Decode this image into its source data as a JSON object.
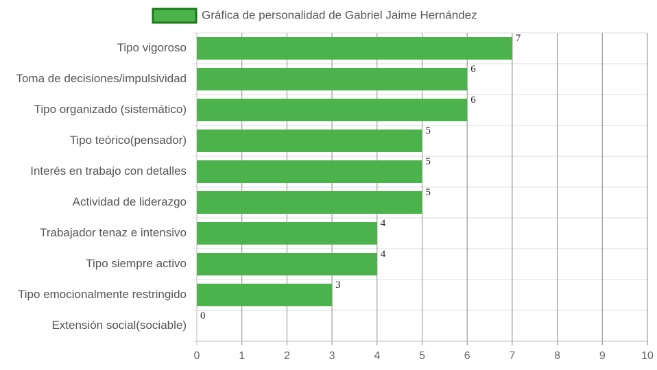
{
  "chart_data": {
    "type": "bar",
    "orientation": "horizontal",
    "categories": [
      "Tipo vigoroso",
      "Toma de decisiones/impulsividad",
      "Tipo organizado (sistemático)",
      "Tipo teórico(pensador)",
      "Interés en trabajo con detalles",
      "Actividad de liderazgo",
      "Trabajador tenaz e intensivo",
      "Tipo siempre activo",
      "Tipo emocionalmente restringido",
      "Extensión social(sociable)"
    ],
    "series": [
      {
        "name": "Gráfica de personalidad de Gabriel Jaime Hernández",
        "color": "#4cb34c",
        "values": [
          7,
          6,
          6,
          5,
          5,
          5,
          4,
          4,
          3,
          0
        ]
      }
    ],
    "xlim": [
      0,
      10
    ],
    "xticks": [
      0,
      1,
      2,
      3,
      4,
      5,
      6,
      7,
      8,
      9,
      10
    ],
    "grid": true,
    "legend": "top"
  }
}
